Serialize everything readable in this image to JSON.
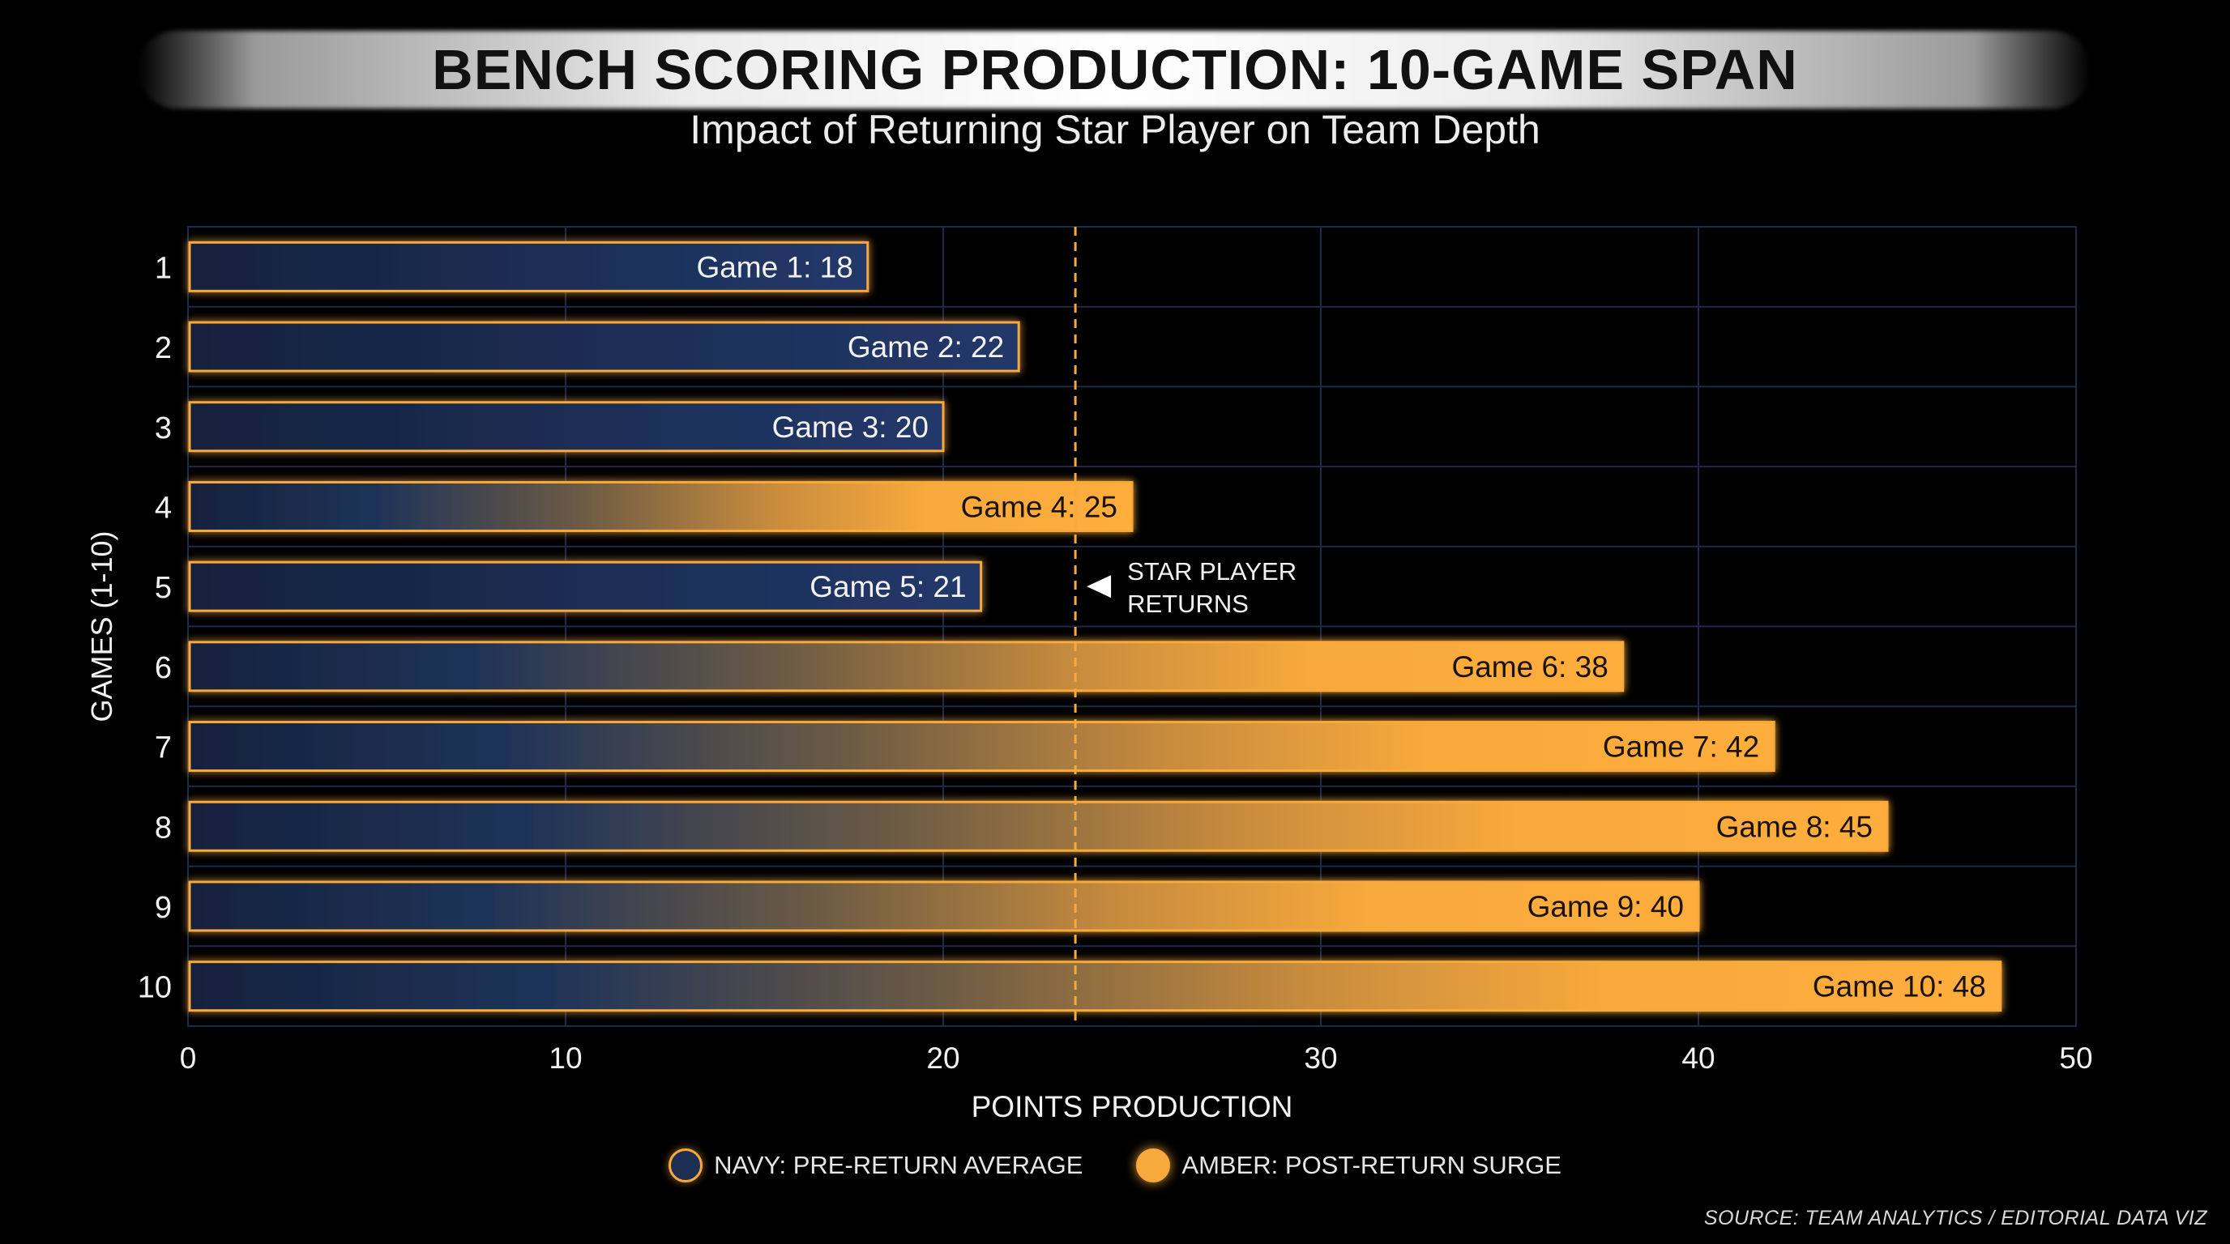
{
  "chart_data": {
    "type": "bar",
    "orientation": "horizontal",
    "title": "BENCH SCORING PRODUCTION: 10-GAME SPAN",
    "subtitle": "Impact of Returning Star Player on Team Depth",
    "xlabel": "POINTS PRODUCTION",
    "ylabel": "GAMES (1-10)",
    "xlim": [
      0,
      50
    ],
    "xticks": [
      0,
      10,
      20,
      30,
      40,
      50
    ],
    "categories": [
      "1",
      "2",
      "3",
      "4",
      "5",
      "6",
      "7",
      "8",
      "9",
      "10"
    ],
    "values": [
      18,
      22,
      20,
      25,
      21,
      38,
      42,
      45,
      40,
      48
    ],
    "data_labels": [
      "Game 1: 18",
      "Game 2: 22",
      "Game 3: 20",
      "Game 4: 25",
      "Game 5: 21",
      "Game 6: 38",
      "Game 7: 42",
      "Game 8: 45",
      "Game 9: 40",
      "Game 10: 48"
    ],
    "annotation": {
      "x": 23.5,
      "text_line1": "STAR PLAYER",
      "text_line2": "RETURNS"
    },
    "grid": true,
    "legend": [
      {
        "label": "NAVY: PRE-RETURN AVERAGE",
        "color": "#1c2f52"
      },
      {
        "label": "AMBER: POST-RETURN SURGE",
        "color": "#f7a93b"
      }
    ],
    "legend_position": "bottom",
    "source": "SOURCE: TEAM ANALYTICS / EDITORIAL DATA VIZ",
    "colors": {
      "navy": "#1c2f52",
      "amber": "#f7a93b",
      "grid": "#1f2a48"
    }
  }
}
